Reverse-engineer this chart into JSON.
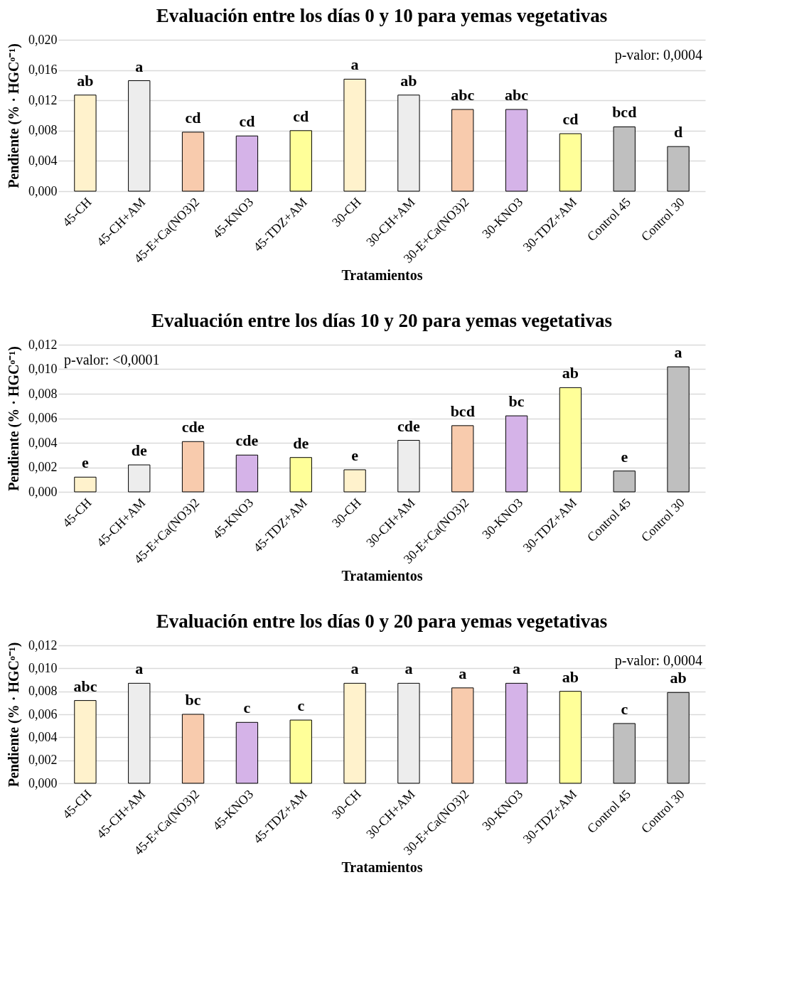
{
  "chart_data": [
    {
      "type": "bar",
      "title": "Evaluación entre los días 0 y 10 para yemas vegetativas",
      "xlabel": "Tratamientos",
      "ylabel": "Pendiente (% · HGCᵒ⁻¹)",
      "categories": [
        "45-CH",
        "45-CH+AM",
        "45-E+Ca(NO3)2",
        "45-KNO3",
        "45-TDZ+AM",
        "30-CH",
        "30-CH+AM",
        "30-E+Ca(NO3)2",
        "30-KNO3",
        "30-TDZ+AM",
        "Control 45",
        "Control 30"
      ],
      "values": [
        0.0127,
        0.0146,
        0.0078,
        0.0073,
        0.008,
        0.0148,
        0.0127,
        0.0108,
        0.0108,
        0.0076,
        0.0085,
        0.0059
      ],
      "colors": [
        "#fff2cc",
        "#ededed",
        "#f8cbad",
        "#d5b3e8",
        "#ffff99",
        "#fff2cc",
        "#ededed",
        "#f8cbad",
        "#d5b3e8",
        "#ffff99",
        "#bfbfbf",
        "#bfbfbf"
      ],
      "ylim": [
        0,
        0.02
      ],
      "yticks": [
        {
          "value": 0,
          "label": "0,000"
        },
        {
          "value": 0.004,
          "label": "0,004"
        },
        {
          "value": 0.008,
          "label": "0,008"
        },
        {
          "value": 0.012,
          "label": "0,012"
        },
        {
          "value": 0.016,
          "label": "0,016"
        },
        {
          "value": 0.02,
          "label": "0,020"
        }
      ],
      "grid": "y",
      "annotations": [
        "p-valor: 0,0004",
        {
          "text": "ab",
          "x": "45-CH",
          "y": 0.0127
        },
        {
          "text": "a",
          "x": "45-CH+AM",
          "y": 0.0146
        },
        {
          "text": "cd",
          "x": "45-E+Ca(NO3)2",
          "y": 0.0078
        },
        {
          "text": "cd",
          "x": "45-KNO3",
          "y": 0.0073
        },
        {
          "text": "cd",
          "x": "45-TDZ+AM",
          "y": 0.008
        },
        {
          "text": "a",
          "x": "30-CH",
          "y": 0.0148
        },
        {
          "text": "ab",
          "x": "30-CH+AM",
          "y": 0.0127
        },
        {
          "text": "abc",
          "x": "30-E+Ca(NO3)2",
          "y": 0.0108
        },
        {
          "text": "abc",
          "x": "30-KNO3",
          "y": 0.0108
        },
        {
          "text": "cd",
          "x": "30-TDZ+AM",
          "y": 0.0076
        },
        {
          "text": "bcd",
          "x": "Control 45",
          "y": 0.0085
        },
        {
          "text": "d",
          "x": "Control 30",
          "y": 0.0059
        }
      ]
    },
    {
      "type": "bar",
      "title": "Evaluación entre los días 10 y 20 para yemas vegetativas",
      "xlabel": "Tratamientos",
      "ylabel": "Pendiente (% · HGCᵒ⁻¹)",
      "categories": [
        "45-CH",
        "45-CH+AM",
        "45-E+Ca(NO3)2",
        "45-KNO3",
        "45-TDZ+AM",
        "30-CH",
        "30-CH+AM",
        "30-E+Ca(NO3)2",
        "30-KNO3",
        "30-TDZ+AM",
        "Control 45",
        "Control 30"
      ],
      "values": [
        0.0012,
        0.0022,
        0.0041,
        0.003,
        0.0028,
        0.0018,
        0.0042,
        0.0054,
        0.0062,
        0.0085,
        0.0017,
        0.0102
      ],
      "colors": [
        "#fff2cc",
        "#ededed",
        "#f8cbad",
        "#d5b3e8",
        "#ffff99",
        "#fff2cc",
        "#ededed",
        "#f8cbad",
        "#d5b3e8",
        "#ffff99",
        "#bfbfbf",
        "#bfbfbf"
      ],
      "ylim": [
        0,
        0.012
      ],
      "yticks": [
        {
          "value": 0,
          "label": "0,000"
        },
        {
          "value": 0.002,
          "label": "0,002"
        },
        {
          "value": 0.004,
          "label": "0,004"
        },
        {
          "value": 0.006,
          "label": "0,006"
        },
        {
          "value": 0.008,
          "label": "0,008"
        },
        {
          "value": 0.01,
          "label": "0,010"
        },
        {
          "value": 0.012,
          "label": "0,012"
        }
      ],
      "grid": "y",
      "annotations": [
        "p-valor: <0,0001",
        {
          "text": "e",
          "x": "45-CH",
          "y": 0.0012
        },
        {
          "text": "de",
          "x": "45-CH+AM",
          "y": 0.0022
        },
        {
          "text": "cde",
          "x": "45-E+Ca(NO3)2",
          "y": 0.0041
        },
        {
          "text": "cde",
          "x": "45-KNO3",
          "y": 0.003
        },
        {
          "text": "de",
          "x": "45-TDZ+AM",
          "y": 0.0028
        },
        {
          "text": "e",
          "x": "30-CH",
          "y": 0.0018
        },
        {
          "text": "cde",
          "x": "30-CH+AM",
          "y": 0.0042
        },
        {
          "text": "bcd",
          "x": "30-E+Ca(NO3)2",
          "y": 0.0054
        },
        {
          "text": "bc",
          "x": "30-KNO3",
          "y": 0.0062
        },
        {
          "text": "ab",
          "x": "30-TDZ+AM",
          "y": 0.0085
        },
        {
          "text": "e",
          "x": "Control 45",
          "y": 0.0017
        },
        {
          "text": "a",
          "x": "Control 30",
          "y": 0.0102
        }
      ]
    },
    {
      "type": "bar",
      "title": "Evaluación entre los días 0 y 20 para yemas vegetativas",
      "xlabel": "Tratamientos",
      "ylabel": "Pendiente (% · HGCᵒ⁻¹)",
      "categories": [
        "45-CH",
        "45-CH+AM",
        "45-E+Ca(NO3)2",
        "45-KNO3",
        "45-TDZ+AM",
        "30-CH",
        "30-CH+AM",
        "30-E+Ca(NO3)2",
        "30-KNO3",
        "30-TDZ+AM",
        "Control 45",
        "Control 30"
      ],
      "values": [
        0.0072,
        0.0087,
        0.006,
        0.0053,
        0.0055,
        0.0087,
        0.0087,
        0.0083,
        0.0087,
        0.008,
        0.0052,
        0.0079
      ],
      "colors": [
        "#fff2cc",
        "#ededed",
        "#f8cbad",
        "#d5b3e8",
        "#ffff99",
        "#fff2cc",
        "#ededed",
        "#f8cbad",
        "#d5b3e8",
        "#ffff99",
        "#bfbfbf",
        "#bfbfbf"
      ],
      "ylim": [
        0,
        0.012
      ],
      "yticks": [
        {
          "value": 0,
          "label": "0,000"
        },
        {
          "value": 0.002,
          "label": "0,002"
        },
        {
          "value": 0.004,
          "label": "0,004"
        },
        {
          "value": 0.006,
          "label": "0,006"
        },
        {
          "value": 0.008,
          "label": "0,008"
        },
        {
          "value": 0.01,
          "label": "0,010"
        },
        {
          "value": 0.012,
          "label": "0,012"
        }
      ],
      "grid": "y",
      "annotations": [
        "p-valor: 0,0004",
        {
          "text": "abc",
          "x": "45-CH",
          "y": 0.0072
        },
        {
          "text": "a",
          "x": "45-CH+AM",
          "y": 0.0087
        },
        {
          "text": "bc",
          "x": "45-E+Ca(NO3)2",
          "y": 0.006
        },
        {
          "text": "c",
          "x": "45-KNO3",
          "y": 0.0053
        },
        {
          "text": "c",
          "x": "45-TDZ+AM",
          "y": 0.0055
        },
        {
          "text": "a",
          "x": "30-CH",
          "y": 0.0087
        },
        {
          "text": "a",
          "x": "30-CH+AM",
          "y": 0.0087
        },
        {
          "text": "a",
          "x": "30-E+Ca(NO3)2",
          "y": 0.0083
        },
        {
          "text": "a",
          "x": "30-KNO3",
          "y": 0.0087
        },
        {
          "text": "ab",
          "x": "30-TDZ+AM",
          "y": 0.008
        },
        {
          "text": "c",
          "x": "Control 45",
          "y": 0.0052
        },
        {
          "text": "ab",
          "x": "Control 30",
          "y": 0.0079
        }
      ]
    }
  ]
}
